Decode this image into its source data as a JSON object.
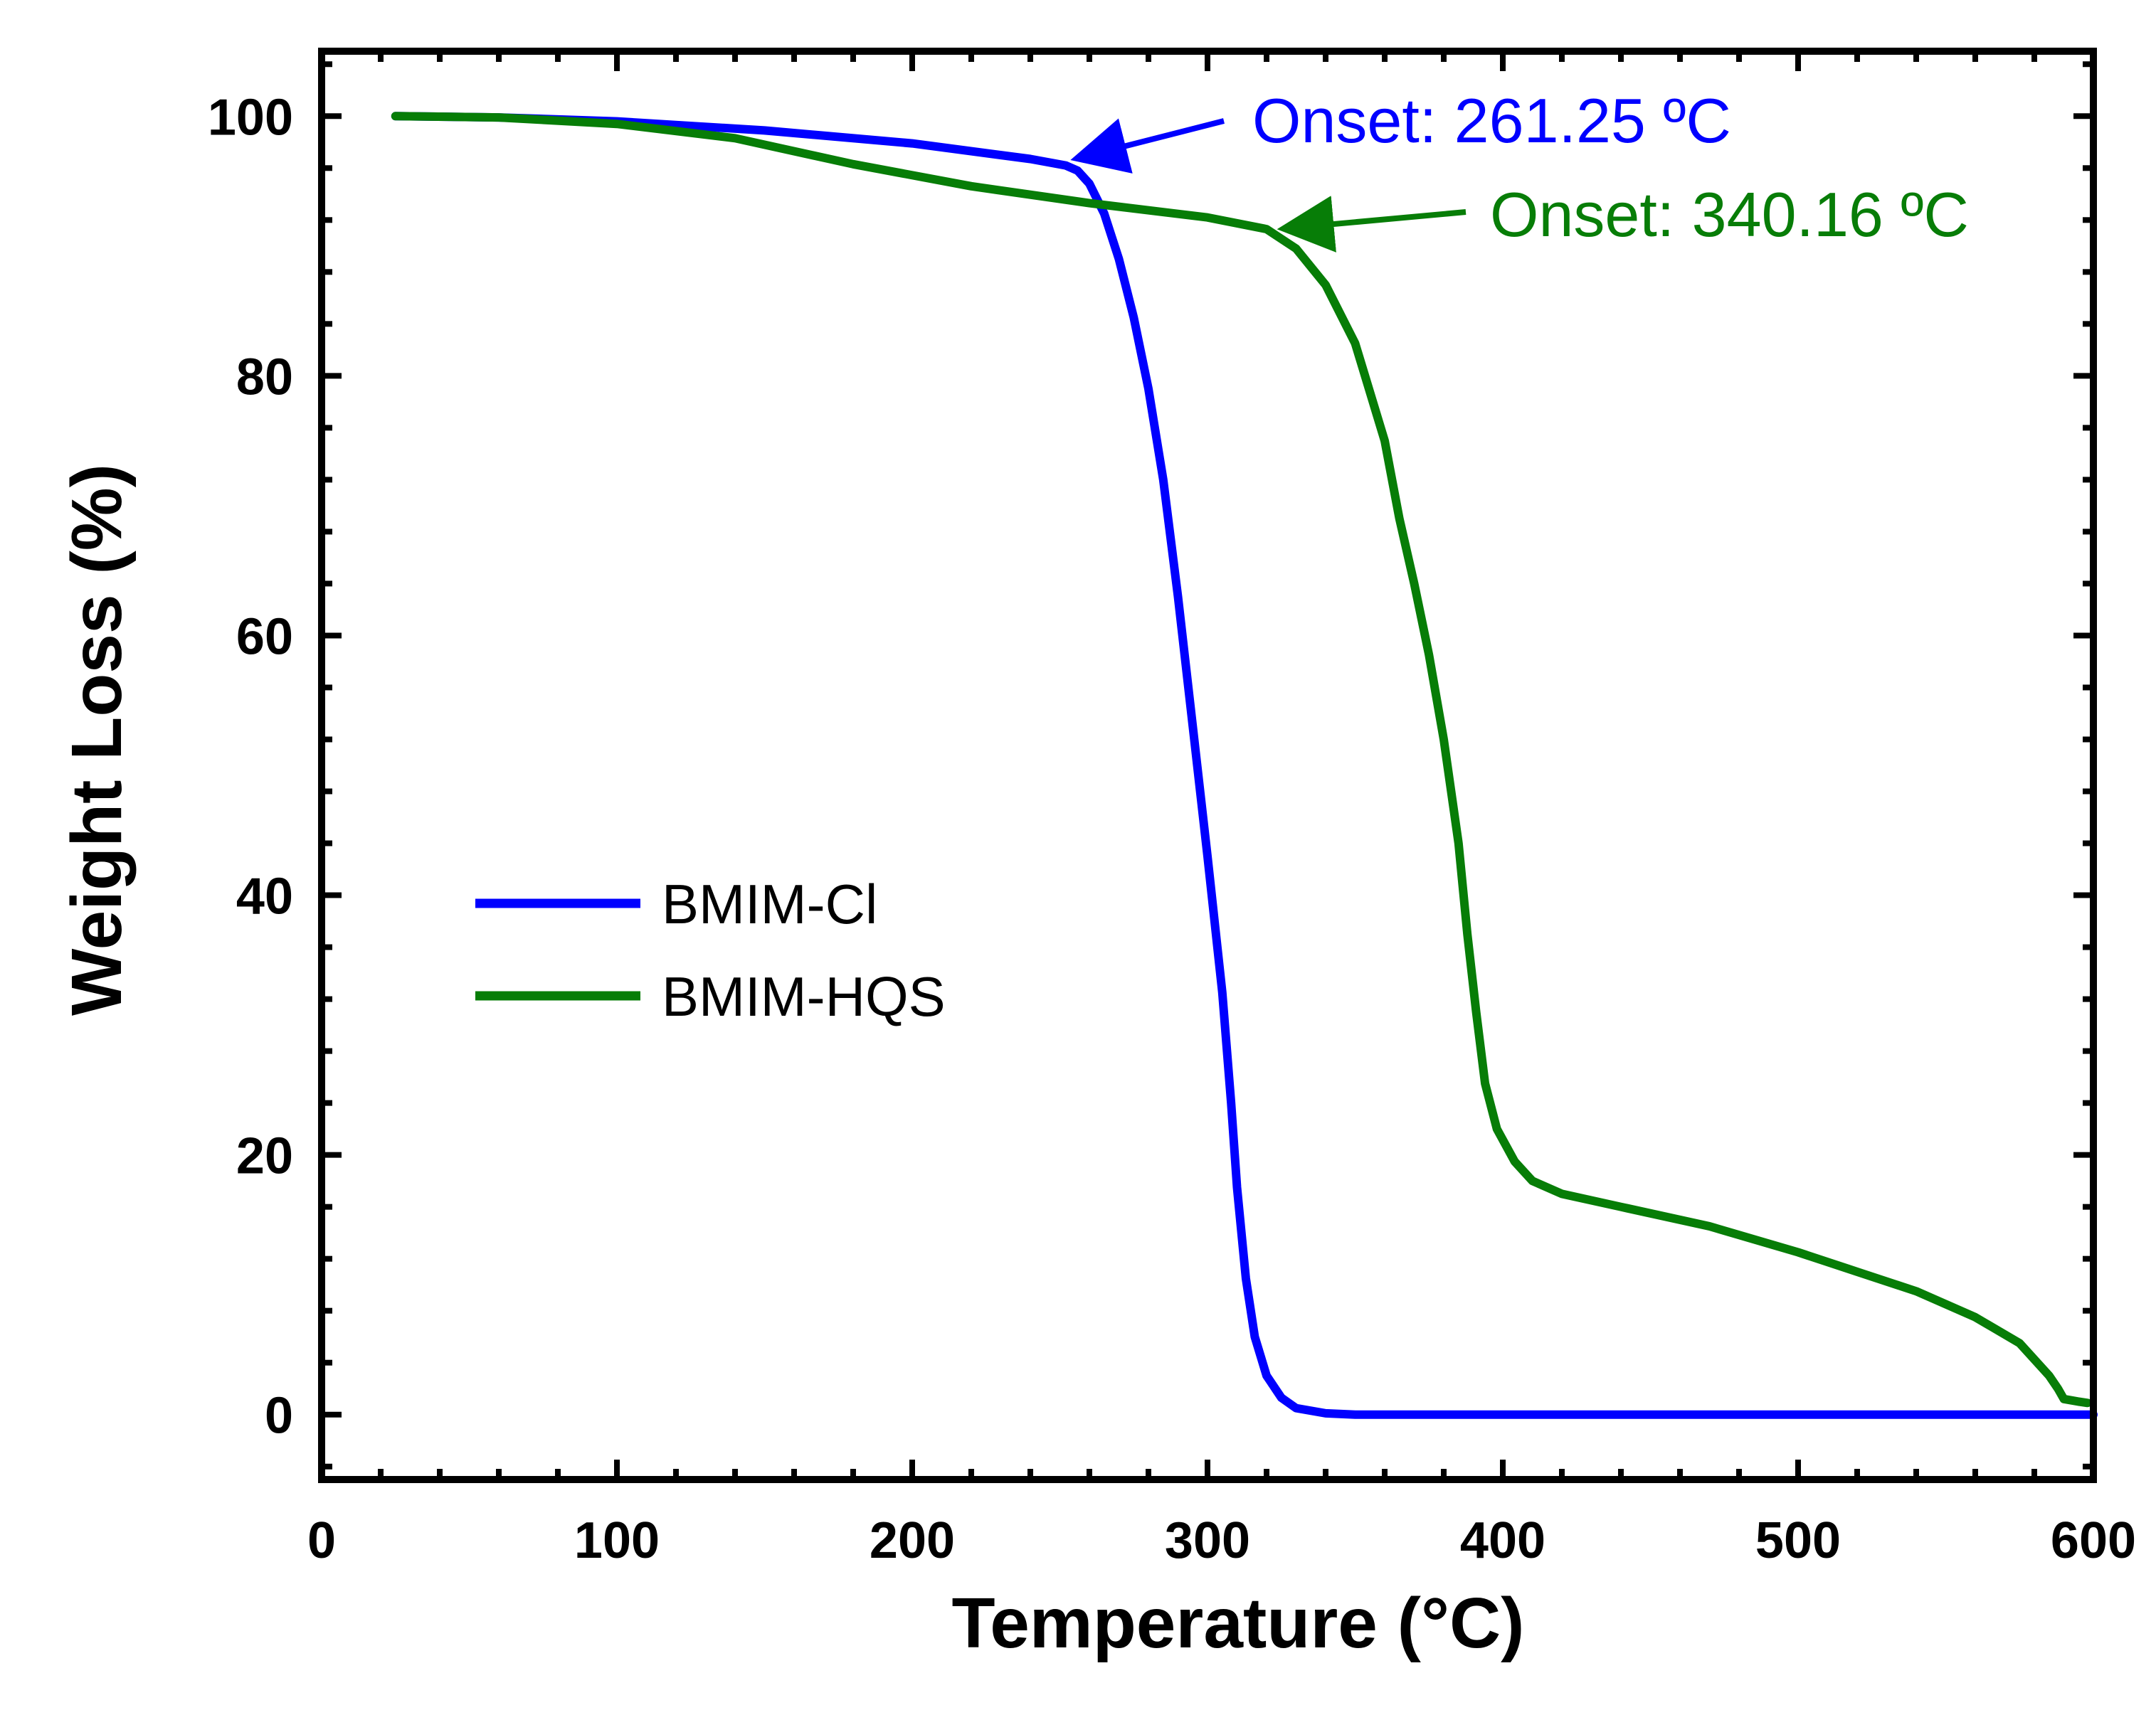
{
  "chart_data": {
    "type": "line",
    "title": "",
    "xlabel": "Temperature (°C)",
    "ylabel": "Weight Loss (%)",
    "xlim": [
      0,
      600
    ],
    "ylim": [
      -5,
      105
    ],
    "x_ticks": [
      0,
      100,
      200,
      300,
      400,
      500,
      600
    ],
    "y_ticks": [
      0,
      20,
      40,
      60,
      80,
      100
    ],
    "x_minor_step": 20,
    "y_minor_step": 4,
    "grid": false,
    "legend_position": "middle-left",
    "series": [
      {
        "name": "BMIM-Cl",
        "color": "#0000ff",
        "points": [
          [
            25,
            100
          ],
          [
            60,
            99.9
          ],
          [
            100,
            99.6
          ],
          [
            150,
            98.9
          ],
          [
            200,
            97.9
          ],
          [
            240,
            96.7
          ],
          [
            252,
            96.2
          ],
          [
            256,
            95.8
          ],
          [
            260,
            94.8
          ],
          [
            265,
            92.5
          ],
          [
            270,
            89.0
          ],
          [
            275,
            84.5
          ],
          [
            280,
            79.0
          ],
          [
            285,
            72.0
          ],
          [
            290,
            63.0
          ],
          [
            295,
            53.0
          ],
          [
            300,
            43.0
          ],
          [
            305,
            32.5
          ],
          [
            308,
            24.0
          ],
          [
            310,
            17.5
          ],
          [
            313,
            10.5
          ],
          [
            316,
            6.0
          ],
          [
            320,
            3.0
          ],
          [
            325,
            1.3
          ],
          [
            330,
            0.5
          ],
          [
            340,
            0.1
          ],
          [
            350,
            0
          ],
          [
            400,
            0
          ],
          [
            500,
            0
          ],
          [
            600,
            0
          ]
        ]
      },
      {
        "name": "BMIM-HQS",
        "color": "#077d07",
        "points": [
          [
            25,
            100
          ],
          [
            60,
            99.9
          ],
          [
            100,
            99.4
          ],
          [
            140,
            98.3
          ],
          [
            180,
            96.3
          ],
          [
            220,
            94.6
          ],
          [
            260,
            93.3
          ],
          [
            300,
            92.2
          ],
          [
            320,
            91.3
          ],
          [
            330,
            89.8
          ],
          [
            340,
            87.0
          ],
          [
            350,
            82.5
          ],
          [
            360,
            75.0
          ],
          [
            365,
            69.0
          ],
          [
            370,
            64.0
          ],
          [
            375,
            58.5
          ],
          [
            380,
            52.0
          ],
          [
            385,
            44.0
          ],
          [
            388,
            37.0
          ],
          [
            391,
            31.0
          ],
          [
            394,
            25.5
          ],
          [
            398,
            22.0
          ],
          [
            404,
            19.5
          ],
          [
            410,
            18.0
          ],
          [
            420,
            17.0
          ],
          [
            440,
            16.0
          ],
          [
            470,
            14.5
          ],
          [
            500,
            12.5
          ],
          [
            520,
            11.0
          ],
          [
            540,
            9.5
          ],
          [
            560,
            7.5
          ],
          [
            575,
            5.5
          ],
          [
            585,
            3.0
          ],
          [
            588,
            2.0
          ],
          [
            590,
            1.2
          ],
          [
            595,
            1.0
          ],
          [
            598,
            0.9
          ]
        ]
      }
    ],
    "annotations": [
      {
        "text": "Onset: 261.25 ºC",
        "color": "#0000ff",
        "target": [
          254,
          96.4
        ]
      },
      {
        "text": "Onset: 340.16 ºC",
        "color": "#077d07",
        "target": [
          324,
          91.0
        ]
      }
    ]
  }
}
